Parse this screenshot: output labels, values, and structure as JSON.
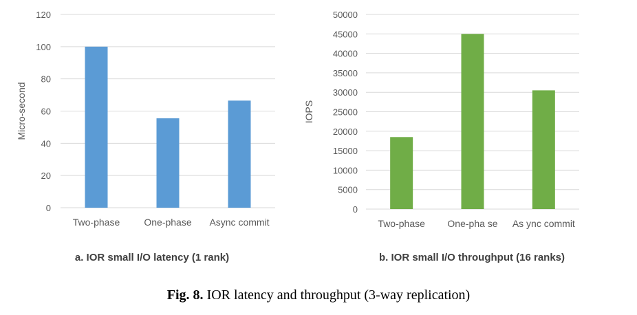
{
  "chart_data": [
    {
      "type": "bar",
      "categories": [
        "Two-phase",
        "One-phase",
        "Async commit"
      ],
      "values": [
        100,
        55.5,
        66.5
      ],
      "ylabel": "Micro-second",
      "xlabel": "",
      "ylim": [
        0,
        120
      ],
      "yticks": [
        0,
        20,
        40,
        60,
        80,
        100,
        120
      ],
      "grid": true,
      "color": "#5b9bd5",
      "caption": "a. IOR small I/O latency  (1 rank)"
    },
    {
      "type": "bar",
      "categories": [
        "Two-phase",
        "One-pha se",
        "As ync commit"
      ],
      "values": [
        18500,
        45000,
        30500
      ],
      "ylabel": "IOPS",
      "xlabel": "",
      "ylim": [
        0,
        50000
      ],
      "yticks": [
        0,
        5000,
        10000,
        15000,
        20000,
        25000,
        30000,
        35000,
        40000,
        45000,
        50000
      ],
      "grid": true,
      "color": "#70ad47",
      "caption": "b. IOR small I/O throughput  (16 ranks)"
    }
  ],
  "figure_caption": {
    "label": "Fig. 8.",
    "text": " IOR latency and throughput (3-way replication)"
  }
}
